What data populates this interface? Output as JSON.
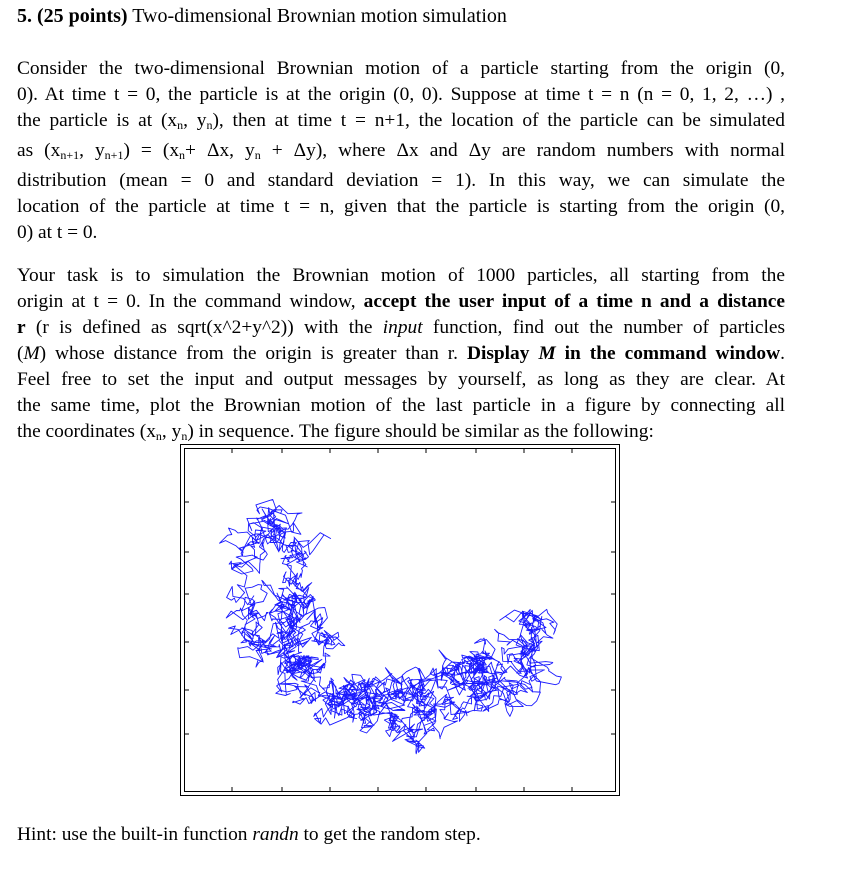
{
  "heading": {
    "number": "5.",
    "points": "(25 points)",
    "title": "Two-dimensional Brownian motion simulation"
  },
  "paragraph1": {
    "l1": "Consider the two-dimensional Brownian motion of a particle starting from the origin (0,",
    "l2": "0). At time t = 0, the particle is at the origin (0, 0). Suppose at time t = n (n = 0, 1, 2, …) ,",
    "l3a": "the particle is at (x",
    "l3b": ", y",
    "l3c": "), then at time t = n+1, the location of the particle can be simulated",
    "sub_n": "n",
    "sub_n1": "n+1",
    "l4a": "as (x",
    "l4b": ", y",
    "l4c": ") = (x",
    "l4d": "+ Δx, y",
    "l4e": " + Δy), where Δx and Δy are random numbers with normal",
    "l5": "distribution (mean = 0 and standard deviation = 1). In this way, we can simulate the",
    "l6": "location of the particle at time t = n, given that the particle is starting from the origin (0,",
    "l7": "0) at t = 0."
  },
  "paragraph2": {
    "l1": "Your task is to simulation the Brownian motion of 1000 particles, all starting from the",
    "l2a": "origin at t = 0. In the command window,",
    "l2b": "accept the user input of a time n and a distance",
    "l3a": "r",
    "l3b": " (r is defined as sqrt(x^2+y^2)) with the ",
    "l3c": "input",
    "l3d": " function, find out the number of particles",
    "l4a": "(",
    "l4b": "M",
    "l4c": ") whose distance from the origin is greater than r. ",
    "l4d": "Display ",
    "l4e": "M",
    "l4f": " in the command window",
    "l4g": ".",
    "l5": "Feel free to set the input and output messages by yourself, as long as they are clear. At",
    "l6": "the same time, plot the Brownian motion of the last particle in a figure by connecting all",
    "l7a": "the coordinates (x",
    "l7b": ", y",
    "l7c": ") in sequence. The figure should be similar as the following:"
  },
  "figure": {
    "line_color": "#1a1aff",
    "frame_color": "#000000"
  },
  "hint": {
    "a": "Hint: use the built-in function ",
    "b": "randn",
    "c": " to get the random step."
  }
}
